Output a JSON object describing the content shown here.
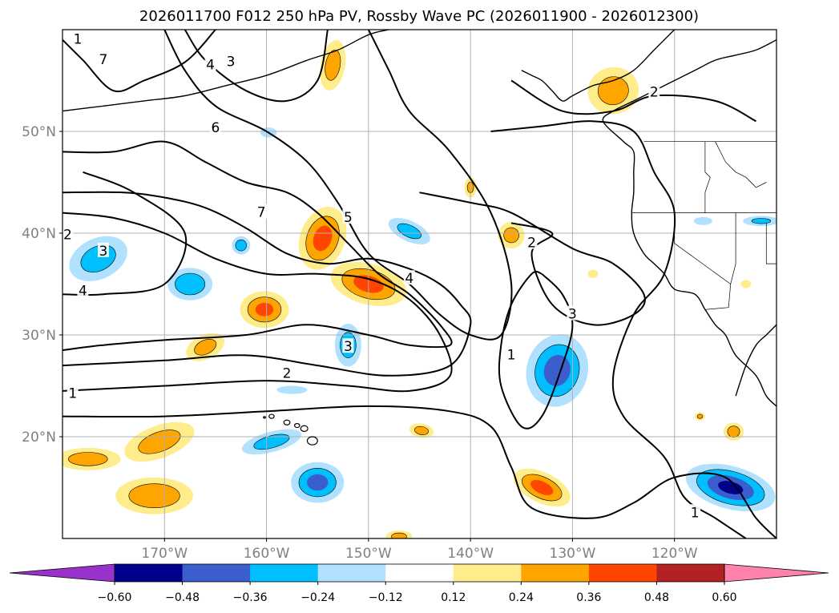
{
  "chart_data": {
    "type": "map-contour",
    "title": "2026011700 F012 250 hPa PV, Rossby Wave PC (2026011900 - 2026012300)",
    "lon_range": [
      -180,
      -110
    ],
    "lat_range": [
      10,
      60
    ],
    "x_ticks": [
      {
        "lon": -170,
        "label": "170°W"
      },
      {
        "lon": -160,
        "label": "160°W"
      },
      {
        "lon": -150,
        "label": "150°W"
      },
      {
        "lon": -140,
        "label": "140°W"
      },
      {
        "lon": -130,
        "label": "130°W"
      },
      {
        "lon": -120,
        "label": "120°W"
      }
    ],
    "y_ticks": [
      {
        "lat": 20,
        "label": "20°N"
      },
      {
        "lat": 30,
        "label": "30°N"
      },
      {
        "lat": 40,
        "label": "40°N"
      },
      {
        "lat": 50,
        "label": "50°N"
      }
    ],
    "colorbar": {
      "ticks": [
        "−0.60",
        "−0.48",
        "−0.36",
        "−0.24",
        "−0.12",
        "0.12",
        "0.24",
        "0.36",
        "0.48",
        "0.60"
      ],
      "colors": [
        "#9932cc",
        "#00008b",
        "#3a5fcd",
        "#00bfff",
        "#b0e2ff",
        "#ffffff",
        "#ffec8b",
        "#ffa500",
        "#ff4500",
        "#b22222",
        "#ff82ab"
      ]
    },
    "contour_labels": [
      {
        "text": "1",
        "lon": -178.5,
        "lat": 59.0
      },
      {
        "text": "7",
        "lon": -176.0,
        "lat": 57.0
      },
      {
        "text": "4",
        "lon": -165.5,
        "lat": 56.5
      },
      {
        "text": "3",
        "lon": -163.5,
        "lat": 56.8
      },
      {
        "text": "6",
        "lon": -165.0,
        "lat": 50.3
      },
      {
        "text": "7",
        "lon": -160.5,
        "lat": 42.0
      },
      {
        "text": "5",
        "lon": -152.0,
        "lat": 41.5
      },
      {
        "text": "3",
        "lon": -176.0,
        "lat": 38.2
      },
      {
        "text": "2",
        "lon": -179.5,
        "lat": 39.8
      },
      {
        "text": "4",
        "lon": -178.0,
        "lat": 34.3
      },
      {
        "text": "4",
        "lon": -146.0,
        "lat": 35.5
      },
      {
        "text": "3",
        "lon": -152.0,
        "lat": 28.8
      },
      {
        "text": "2",
        "lon": -158.0,
        "lat": 26.2
      },
      {
        "text": "1",
        "lon": -179.0,
        "lat": 24.2
      },
      {
        "text": "2",
        "lon": -134.0,
        "lat": 39.0
      },
      {
        "text": "3",
        "lon": -130.0,
        "lat": 32.0
      },
      {
        "text": "1",
        "lon": -136.0,
        "lat": 28.0
      },
      {
        "text": "2",
        "lon": -122.0,
        "lat": 53.8
      },
      {
        "text": "1",
        "lon": -118.0,
        "lat": 12.5
      }
    ],
    "contour_lines": [
      [
        [
          -180,
          59
        ],
        [
          -178,
          57
        ],
        [
          -175,
          54
        ],
        [
          -172,
          55
        ],
        [
          -168,
          56.8
        ],
        [
          -165,
          60
        ]
      ],
      [
        [
          -168,
          60
        ],
        [
          -166,
          57
        ],
        [
          -162,
          54
        ],
        [
          -158,
          53
        ],
        [
          -155,
          55
        ],
        [
          -154,
          60
        ]
      ],
      [
        [
          -170,
          60
        ],
        [
          -168,
          56
        ],
        [
          -165,
          52.5
        ],
        [
          -160,
          50
        ],
        [
          -156,
          47
        ],
        [
          -153,
          43
        ],
        [
          -150,
          38
        ],
        [
          -146,
          35
        ],
        [
          -143,
          32
        ],
        [
          -140,
          30
        ],
        [
          -137,
          30
        ],
        [
          -136,
          35
        ],
        [
          -138,
          42
        ],
        [
          -142,
          48
        ],
        [
          -146,
          52
        ],
        [
          -148,
          56
        ],
        [
          -150,
          60
        ]
      ],
      [
        [
          -180,
          48
        ],
        [
          -175,
          48
        ],
        [
          -170,
          49
        ],
        [
          -166,
          47
        ],
        [
          -162,
          45
        ],
        [
          -158,
          44
        ],
        [
          -155,
          42
        ],
        [
          -152,
          39
        ],
        [
          -149,
          36
        ],
        [
          -146,
          34
        ],
        [
          -143,
          31
        ],
        [
          -142,
          29
        ],
        [
          -146,
          29
        ],
        [
          -150,
          30
        ],
        [
          -156,
          31
        ],
        [
          -162,
          30
        ],
        [
          -170,
          29.5
        ],
        [
          -176,
          29
        ],
        [
          -180,
          28.5
        ]
      ],
      [
        [
          -180,
          44
        ],
        [
          -174,
          44
        ],
        [
          -170,
          43.5
        ],
        [
          -166,
          42.5
        ],
        [
          -162,
          40.5
        ],
        [
          -158,
          38
        ],
        [
          -154,
          37
        ],
        [
          -150,
          37.5
        ],
        [
          -146,
          36.5
        ],
        [
          -143,
          35
        ],
        [
          -141,
          33
        ],
        [
          -140,
          31
        ],
        [
          -142,
          27
        ],
        [
          -148,
          26
        ],
        [
          -155,
          27
        ],
        [
          -162,
          28
        ],
        [
          -170,
          27.5
        ],
        [
          -180,
          27
        ]
      ],
      [
        [
          -180,
          42
        ],
        [
          -175,
          41.5
        ],
        [
          -170,
          40
        ],
        [
          -165,
          37.5
        ],
        [
          -160,
          36
        ],
        [
          -155,
          36
        ],
        [
          -150,
          35.5
        ],
        [
          -146,
          33.5
        ],
        [
          -143,
          30
        ],
        [
          -142,
          26
        ],
        [
          -146,
          24.5
        ],
        [
          -152,
          25
        ],
        [
          -160,
          25.5
        ],
        [
          -170,
          25
        ],
        [
          -180,
          24.5
        ]
      ],
      [
        [
          -180,
          22
        ],
        [
          -170,
          22
        ],
        [
          -160,
          22.5
        ],
        [
          -150,
          23
        ],
        [
          -142,
          22.5
        ],
        [
          -138,
          21
        ],
        [
          -136,
          17
        ],
        [
          -134,
          13
        ],
        [
          -128,
          12
        ],
        [
          -124,
          13.5
        ],
        [
          -120,
          16
        ],
        [
          -115,
          16
        ],
        [
          -112,
          12
        ],
        [
          -110,
          10
        ]
      ],
      [
        [
          -136,
          55
        ],
        [
          -131,
          52
        ],
        [
          -126,
          52
        ],
        [
          -122,
          53.5
        ],
        [
          -116,
          53
        ],
        [
          -112,
          51
        ]
      ],
      [
        [
          -138,
          50
        ],
        [
          -133,
          50.5
        ],
        [
          -128,
          51
        ],
        [
          -124,
          50
        ],
        [
          -122,
          46
        ],
        [
          -120,
          42
        ],
        [
          -121,
          36
        ],
        [
          -124,
          32
        ],
        [
          -126,
          26
        ],
        [
          -125,
          22
        ],
        [
          -121,
          18
        ],
        [
          -119,
          14
        ],
        [
          -116,
          12
        ],
        [
          -113,
          10
        ]
      ],
      [
        [
          -145,
          44
        ],
        [
          -140,
          43
        ],
        [
          -136,
          42
        ],
        [
          -130,
          38.5
        ],
        [
          -126,
          37
        ],
        [
          -123,
          34
        ],
        [
          -124,
          32
        ],
        [
          -128,
          31
        ],
        [
          -132,
          33
        ],
        [
          -134,
          38
        ],
        [
          -132,
          40
        ],
        [
          -136,
          41
        ]
      ],
      [
        [
          -133,
          36
        ],
        [
          -131,
          34
        ],
        [
          -130,
          31
        ],
        [
          -131,
          27
        ],
        [
          -133,
          22
        ],
        [
          -135,
          21
        ],
        [
          -137,
          25
        ],
        [
          -137,
          29
        ],
        [
          -136,
          33
        ],
        [
          -134,
          36
        ],
        [
          -133,
          36
        ]
      ],
      [
        [
          -178,
          46
        ],
        [
          -173,
          44
        ],
        [
          -168,
          40
        ],
        [
          -170,
          35
        ],
        [
          -176,
          34
        ],
        [
          -180,
          34
        ]
      ]
    ],
    "pv_anomalies": [
      {
        "lon": -176.5,
        "lat": 37.5,
        "rx": 3.0,
        "ry": 2.0,
        "value": -0.3,
        "rot": -25
      },
      {
        "lon": -167.5,
        "lat": 35.0,
        "rx": 2.2,
        "ry": 1.6,
        "value": -0.36,
        "rot": 0
      },
      {
        "lon": -162.5,
        "lat": 38.8,
        "rx": 0.9,
        "ry": 0.9,
        "value": -0.3,
        "rot": 0
      },
      {
        "lon": -152.0,
        "lat": 29.0,
        "rx": 1.3,
        "ry": 2.1,
        "value": -0.3,
        "rot": 0
      },
      {
        "lon": -146.0,
        "lat": 40.2,
        "rx": 2.2,
        "ry": 1.0,
        "value": -0.28,
        "rot": 25
      },
      {
        "lon": -159.8,
        "lat": 49.9,
        "rx": 0.8,
        "ry": 0.5,
        "value": -0.15,
        "rot": 0
      },
      {
        "lon": -131.5,
        "lat": 26.5,
        "rx": 3.0,
        "ry": 3.6,
        "value": -0.42,
        "rot": 15
      },
      {
        "lon": -159.5,
        "lat": 19.5,
        "rx": 3.0,
        "ry": 1.0,
        "value": -0.3,
        "rot": -15
      },
      {
        "lon": -155.0,
        "lat": 15.5,
        "rx": 2.6,
        "ry": 2.0,
        "value": -0.4,
        "rot": 0
      },
      {
        "lon": -157.5,
        "lat": 24.6,
        "rx": 1.5,
        "ry": 0.4,
        "value": -0.2,
        "rot": 0
      },
      {
        "lon": -114.5,
        "lat": 15.0,
        "rx": 4.5,
        "ry": 2.1,
        "value": -0.5,
        "rot": 15
      },
      {
        "lon": -117.2,
        "lat": 41.2,
        "rx": 0.9,
        "ry": 0.4,
        "value": -0.2,
        "rot": 0
      },
      {
        "lon": -111.5,
        "lat": 41.2,
        "rx": 1.8,
        "ry": 0.5,
        "value": -0.25,
        "rot": 0
      },
      {
        "lon": -126.0,
        "lat": 54.0,
        "rx": 2.5,
        "ry": 2.3,
        "value": 0.3,
        "rot": -10
      },
      {
        "lon": -153.5,
        "lat": 56.5,
        "rx": 1.2,
        "ry": 2.5,
        "value": 0.3,
        "rot": 10
      },
      {
        "lon": -154.5,
        "lat": 39.5,
        "rx": 2.2,
        "ry": 3.2,
        "value": 0.4,
        "rot": 20
      },
      {
        "lon": -150.0,
        "lat": 35.0,
        "rx": 3.8,
        "ry": 2.0,
        "value": 0.4,
        "rot": 15
      },
      {
        "lon": -160.2,
        "lat": 32.5,
        "rx": 2.4,
        "ry": 1.8,
        "value": 0.38,
        "rot": 0
      },
      {
        "lon": -166.0,
        "lat": 28.8,
        "rx": 2.0,
        "ry": 1.2,
        "value": 0.28,
        "rot": -25
      },
      {
        "lon": -140.0,
        "lat": 44.5,
        "rx": 0.6,
        "ry": 1.0,
        "value": 0.25,
        "rot": 0
      },
      {
        "lon": -136.0,
        "lat": 39.8,
        "rx": 1.3,
        "ry": 1.3,
        "value": 0.28,
        "rot": 30
      },
      {
        "lon": -170.5,
        "lat": 19.5,
        "rx": 3.6,
        "ry": 1.6,
        "value": 0.3,
        "rot": -20
      },
      {
        "lon": -177.5,
        "lat": 17.8,
        "rx": 3.2,
        "ry": 1.1,
        "value": 0.3,
        "rot": 0
      },
      {
        "lon": -171.0,
        "lat": 14.2,
        "rx": 3.8,
        "ry": 1.8,
        "value": 0.35,
        "rot": 0
      },
      {
        "lon": -133.0,
        "lat": 15.0,
        "rx": 3.0,
        "ry": 1.5,
        "value": 0.4,
        "rot": 25
      },
      {
        "lon": -144.8,
        "lat": 20.6,
        "rx": 1.2,
        "ry": 0.7,
        "value": 0.28,
        "rot": 10
      },
      {
        "lon": -114.2,
        "lat": 20.5,
        "rx": 1.0,
        "ry": 0.9,
        "value": 0.3,
        "rot": 0
      },
      {
        "lon": -117.5,
        "lat": 22.0,
        "rx": 0.5,
        "ry": 0.4,
        "value": 0.26,
        "rot": 0
      },
      {
        "lon": -128.0,
        "lat": 36.0,
        "rx": 0.5,
        "ry": 0.4,
        "value": 0.18,
        "rot": 0
      },
      {
        "lon": -113.0,
        "lat": 35.0,
        "rx": 0.5,
        "ry": 0.4,
        "value": 0.18,
        "rot": 0
      },
      {
        "lon": -147.0,
        "lat": 10.2,
        "rx": 1.3,
        "ry": 0.6,
        "value": 0.28,
        "rot": 0
      }
    ],
    "coastlines": [
      [
        [
          -110,
          59
        ],
        [
          -112,
          58
        ],
        [
          -114,
          57.5
        ],
        [
          -116,
          57
        ],
        [
          -118,
          56
        ],
        [
          -120,
          55
        ],
        [
          -122,
          54
        ],
        [
          -124,
          53
        ],
        [
          -126,
          52
        ],
        [
          -127,
          51
        ],
        [
          -125,
          49
        ],
        [
          -124,
          48
        ],
        [
          -124,
          46
        ],
        [
          -124,
          44
        ],
        [
          -124.2,
          42
        ],
        [
          -124,
          40
        ],
        [
          -123,
          38
        ],
        [
          -122,
          37
        ],
        [
          -121,
          36
        ],
        [
          -120,
          34.5
        ],
        [
          -118,
          34
        ],
        [
          -117,
          32.5
        ],
        [
          -116,
          31
        ],
        [
          -115,
          30
        ],
        [
          -114,
          28
        ],
        [
          -112,
          26
        ],
        [
          -111,
          24
        ],
        [
          -110,
          23
        ]
      ],
      [
        [
          -110,
          31
        ],
        [
          -111,
          30
        ],
        [
          -112,
          29
        ],
        [
          -113,
          27
        ],
        [
          -114,
          24
        ]
      ],
      [
        [
          -135,
          56
        ],
        [
          -134,
          55.5
        ],
        [
          -133,
          55
        ],
        [
          -132,
          54
        ],
        [
          -131,
          53
        ],
        [
          -130,
          53.5
        ],
        [
          -128,
          54.5
        ],
        [
          -126,
          55
        ],
        [
          -124,
          56
        ],
        [
          -122,
          58
        ],
        [
          -120,
          60
        ]
      ],
      [
        [
          -180,
          52
        ],
        [
          -176,
          52.5
        ],
        [
          -172,
          53
        ],
        [
          -168,
          53.5
        ],
        [
          -164,
          54.5
        ],
        [
          -160,
          55.5
        ],
        [
          -156,
          57
        ],
        [
          -153,
          58
        ],
        [
          -150,
          59.5
        ],
        [
          -148,
          60
        ]
      ]
    ],
    "islands": [
      {
        "lon": -155.5,
        "lat": 19.6,
        "r": 0.5
      },
      {
        "lon": -156.3,
        "lat": 20.8,
        "r": 0.35
      },
      {
        "lon": -157.0,
        "lat": 21.1,
        "r": 0.25
      },
      {
        "lon": -158.0,
        "lat": 21.4,
        "r": 0.3
      },
      {
        "lon": -159.5,
        "lat": 22.0,
        "r": 0.25
      },
      {
        "lon": -160.2,
        "lat": 21.9,
        "r": 0.1
      }
    ],
    "borders": [
      [
        [
          -123,
          49
        ],
        [
          -110,
          49
        ]
      ],
      [
        [
          -124.2,
          42
        ],
        [
          -110,
          42
        ]
      ],
      [
        [
          -117,
          49
        ],
        [
          -117,
          46
        ],
        [
          -116.5,
          45.5
        ],
        [
          -117,
          44
        ],
        [
          -117,
          42
        ]
      ],
      [
        [
          -120,
          42
        ],
        [
          -120,
          39
        ],
        [
          -114.5,
          35
        ]
      ],
      [
        [
          -114,
          42
        ],
        [
          -114,
          37
        ],
        [
          -114.5,
          35
        ],
        [
          -114.7,
          32.7
        ],
        [
          -117,
          32.5
        ]
      ],
      [
        [
          -111,
          41
        ],
        [
          -111,
          37
        ],
        [
          -110,
          37
        ]
      ],
      [
        [
          -111,
          45
        ],
        [
          -112,
          44.5
        ],
        [
          -113,
          45.5
        ],
        [
          -114,
          46
        ],
        [
          -115,
          47
        ],
        [
          -116,
          49
        ]
      ]
    ]
  }
}
